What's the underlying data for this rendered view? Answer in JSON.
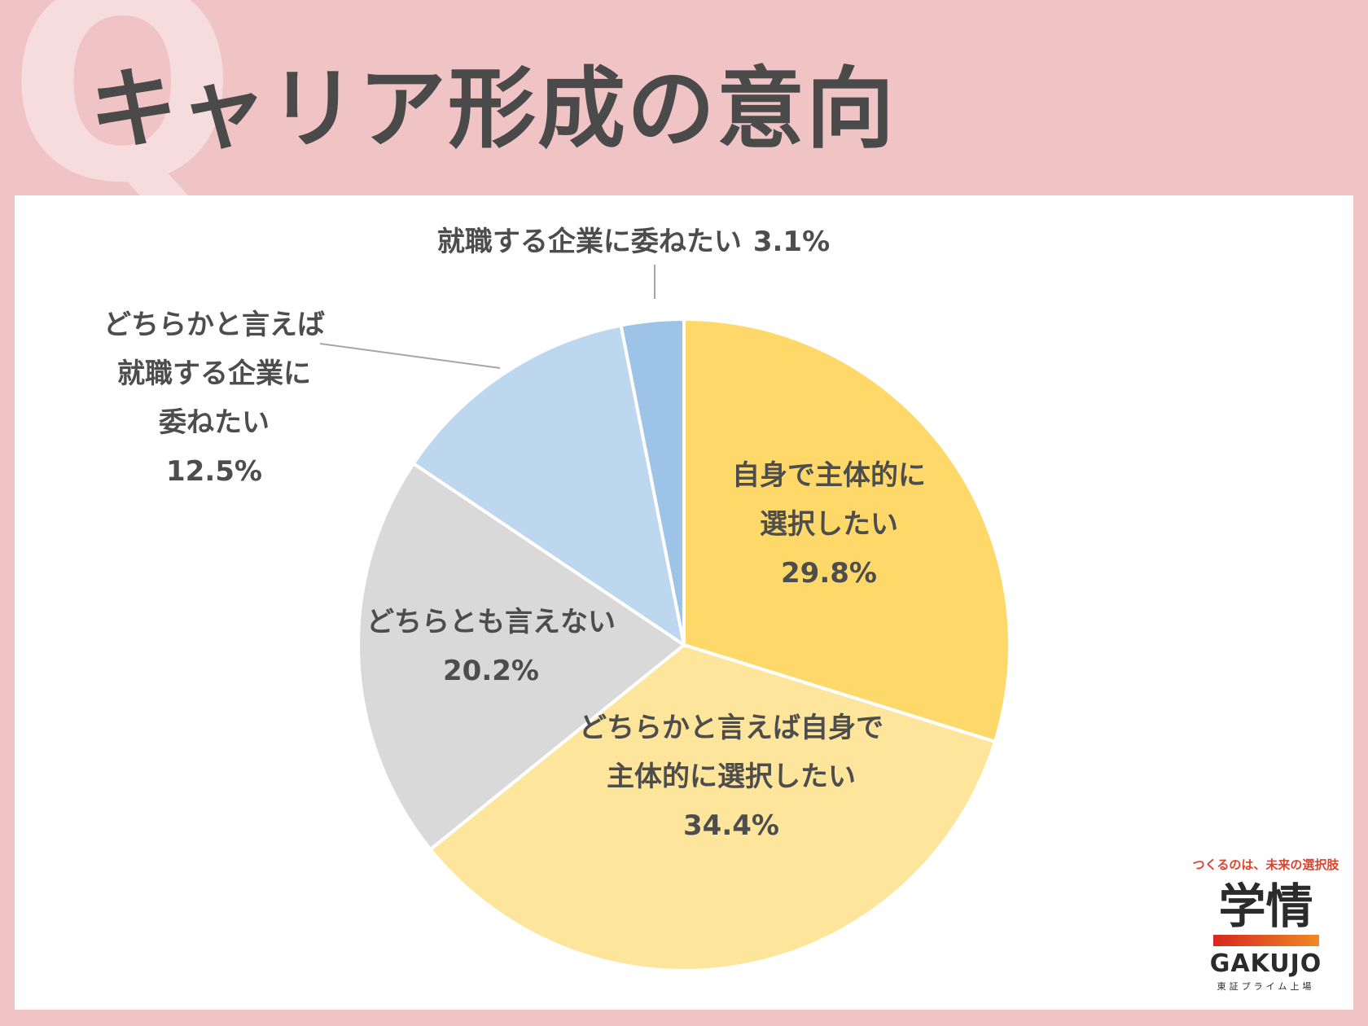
{
  "header": {
    "q_letter": "Q",
    "title": "キャリア形成の意向"
  },
  "chart_data": {
    "type": "pie",
    "start_angle_deg": 0,
    "direction": "clockwise",
    "slices": [
      {
        "label": [
          "自身で主体的に",
          "選択したい"
        ],
        "value": 29.8,
        "value_text": "29.8%",
        "color": "#fed96a"
      },
      {
        "label": [
          "どちらかと言えば自身で",
          "主体的に選択したい"
        ],
        "value": 34.4,
        "value_text": "34.4%",
        "color": "#fee59c"
      },
      {
        "label": [
          "どちらとも言えない"
        ],
        "value": 20.2,
        "value_text": "20.2%",
        "color": "#d9d9d9"
      },
      {
        "label": [
          "どちらかと言えば",
          "就職する企業に",
          "委ねたい"
        ],
        "value": 12.5,
        "value_text": "12.5%",
        "color": "#bdd7ee"
      },
      {
        "label": [
          "就職する企業に委ねたい"
        ],
        "value": 3.1,
        "value_text": "3.1%",
        "color": "#9dc3e6"
      }
    ]
  },
  "logo": {
    "tagline": "つくるのは、未来の選択肢",
    "kanji": "学情",
    "en": "GAKUJO",
    "sub": "東証プライム上場"
  }
}
